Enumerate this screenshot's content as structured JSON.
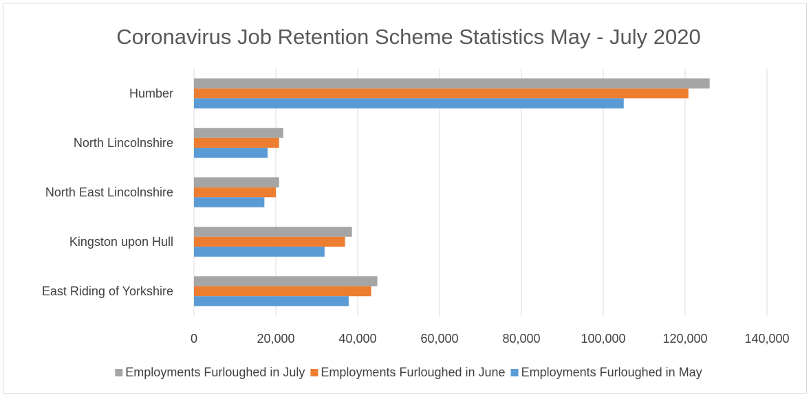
{
  "chart_data": {
    "type": "bar",
    "orientation": "horizontal",
    "title": "Coronavirus Job Retention Scheme Statistics May - July 2020",
    "categories": [
      "Humber",
      "North Lincolnshire",
      "North East Lincolnshire",
      "Kingston upon Hull",
      "East Riding of Yorkshire"
    ],
    "series": [
      {
        "name": "Employments Furloughed in July",
        "color": "#a5a5a5",
        "values": [
          126000,
          21800,
          20800,
          38600,
          44800
        ]
      },
      {
        "name": "Employments Furloughed in June",
        "color": "#ed7d31",
        "values": [
          120800,
          20800,
          20000,
          36900,
          43300
        ]
      },
      {
        "name": "Employments Furloughed in May",
        "color": "#5b9bd5",
        "values": [
          105000,
          18000,
          17200,
          31900,
          37800
        ]
      }
    ],
    "xlim": [
      0,
      140000
    ],
    "ticks": [
      "0",
      "20,000",
      "40,000",
      "60,000",
      "80,000",
      "100,000",
      "120,000",
      "140,000"
    ],
    "grid": true,
    "legend_position": "bottom"
  }
}
